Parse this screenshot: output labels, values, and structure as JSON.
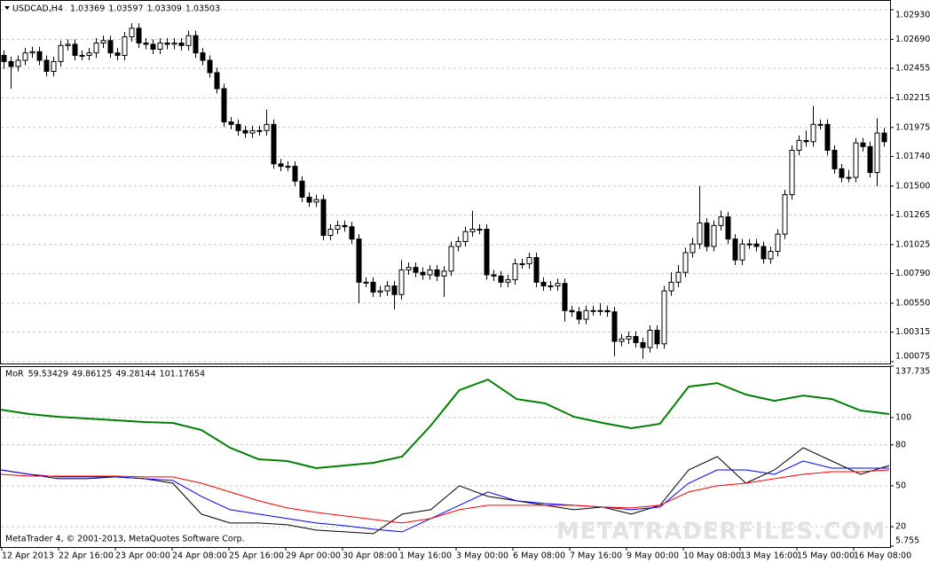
{
  "chart_data": [
    {
      "type": "candlestick",
      "title": "USDCAD,H4",
      "ohlc": [
        1.03369,
        1.03597,
        1.03309,
        1.03503
      ],
      "up_color": "#ffffff",
      "down_color": "#000000",
      "outline_color": "#000000",
      "ylim": [
        1.00075,
        1.0293
      ],
      "yticks": [
        {
          "value": 1.0293,
          "label": "1.02930"
        },
        {
          "value": 1.0269,
          "label": "1.02690"
        },
        1.02455,
        {
          "value": 1.02215,
          "label": "1.02215"
        },
        1.01975,
        {
          "value": 1.0174,
          "label": "1.01740"
        },
        {
          "value": 1.015,
          "label": "1.01500"
        },
        1.01265,
        1.01025,
        {
          "value": 1.0079,
          "label": "1.00790"
        },
        {
          "value": 1.0055,
          "label": "1.00550"
        },
        1.00315,
        1.00075
      ],
      "grid": true,
      "open": [
        1.0256,
        1.0251,
        1.0247,
        1.0252,
        1.0258,
        1.0259,
        1.0252,
        1.0243,
        1.0251,
        1.0264,
        1.0265,
        1.0256,
        1.0256,
        1.0258,
        1.0266,
        1.0268,
        1.0258,
        1.0256,
        1.0271,
        1.0278,
        1.0266,
        1.0265,
        1.0261,
        1.0266,
        1.0265,
        1.0266,
        1.0264,
        1.0272,
        1.0258,
        1.0252,
        1.0242,
        1.0229,
        1.0202,
        1.02,
        1.0195,
        1.0193,
        1.0195,
        1.0195,
        1.02,
        1.0168,
        1.0166,
        1.0166,
        1.0154,
        1.0141,
        1.0137,
        1.0139,
        1.011,
        1.0115,
        1.0118,
        1.0117,
        1.0107,
        1.0072,
        1.0072,
        1.0064,
        1.0065,
        1.0069,
        1.0062,
        1.0082,
        1.0084,
        1.008,
        1.0078,
        1.0082,
        1.0077,
        1.0081,
        1.0101,
        1.0105,
        1.0113,
        1.0115,
        1.0115,
        1.0078,
        1.0077,
        1.0072,
        1.0074,
        1.0087,
        1.0087,
        1.0092,
        1.0072,
        1.0069,
        1.0069,
        1.0071,
        1.0049,
        1.0048,
        1.0042,
        1.0049,
        1.0049,
        1.0049,
        1.0048,
        1.0024,
        1.0026,
        1.0028,
        1.0023,
        1.0019,
        1.0033,
        1.0022,
        1.0065,
        1.0072,
        1.008,
        1.0096,
        1.0103,
        1.012,
        1.0101,
        1.0118,
        1.0125,
        1.0107,
        1.009,
        1.0103,
        1.0103,
        1.0101,
        1.0091,
        1.0097,
        1.0111,
        1.0143,
        1.0179,
        1.0187,
        1.0186,
        1.02,
        1.02,
        1.0179,
        1.0164,
        1.0157,
        1.0157,
        1.0185,
        1.0182,
        1.0161,
        1.0193
      ],
      "high": [
        1.026,
        1.0255,
        1.0256,
        1.0262,
        1.0263,
        1.0263,
        1.0256,
        1.0255,
        1.0268,
        1.0269,
        1.0269,
        1.026,
        1.0262,
        1.027,
        1.0272,
        1.0272,
        1.0262,
        1.0275,
        1.0282,
        1.0282,
        1.027,
        1.0269,
        1.027,
        1.027,
        1.027,
        1.027,
        1.0276,
        1.0276,
        1.0262,
        1.0256,
        1.0246,
        1.0233,
        1.0206,
        1.0204,
        1.0199,
        1.0199,
        1.0199,
        1.0212,
        1.0204,
        1.0172,
        1.017,
        1.017,
        1.0158,
        1.0145,
        1.0143,
        1.0143,
        1.0119,
        1.0122,
        1.0122,
        1.0121,
        1.0111,
        1.0076,
        1.0076,
        1.0069,
        1.0073,
        1.0073,
        1.009,
        1.0088,
        1.0088,
        1.0084,
        1.0086,
        1.0086,
        1.0085,
        1.0105,
        1.0109,
        1.0117,
        1.013,
        1.0119,
        1.0119,
        1.0082,
        1.0081,
        1.0078,
        1.0091,
        1.0091,
        1.0096,
        1.0096,
        1.0076,
        1.0073,
        1.0075,
        1.0075,
        1.0053,
        1.0052,
        1.0053,
        1.0053,
        1.0055,
        1.0053,
        1.0052,
        1.003,
        1.0032,
        1.0032,
        1.0027,
        1.0037,
        1.0037,
        1.0069,
        1.008,
        1.0086,
        1.01,
        1.0108,
        1.015,
        1.0124,
        1.0122,
        1.013,
        1.0129,
        1.0111,
        1.0107,
        1.0107,
        1.0107,
        1.0105,
        1.0101,
        1.0115,
        1.0147,
        1.0183,
        1.0191,
        1.0195,
        1.0215,
        1.0204,
        1.0204,
        1.0183,
        1.0168,
        1.0163,
        1.0189,
        1.0189,
        1.0186,
        1.0205,
        1.0197
      ],
      "low": [
        1.0245,
        1.0229,
        1.0243,
        1.0248,
        1.0254,
        1.0248,
        1.0239,
        1.0239,
        1.0247,
        1.026,
        1.0252,
        1.0252,
        1.0252,
        1.0254,
        1.0262,
        1.0254,
        1.0252,
        1.0252,
        1.0267,
        1.0262,
        1.0261,
        1.0257,
        1.0257,
        1.0261,
        1.0261,
        1.026,
        1.026,
        1.0254,
        1.0248,
        1.0238,
        1.0225,
        1.0198,
        1.0196,
        1.0191,
        1.0189,
        1.0189,
        1.0191,
        1.0191,
        1.0164,
        1.0162,
        1.0162,
        1.015,
        1.0137,
        1.0133,
        1.0133,
        1.0106,
        1.0106,
        1.0111,
        1.0113,
        1.0103,
        1.0055,
        1.0068,
        1.006,
        1.006,
        1.0061,
        1.005,
        1.0058,
        1.0078,
        1.0076,
        1.0074,
        1.0074,
        1.0073,
        1.006,
        1.0077,
        1.0097,
        1.0101,
        1.0109,
        1.0111,
        1.0074,
        1.0073,
        1.0068,
        1.0068,
        1.007,
        1.0083,
        1.0083,
        1.0068,
        1.0065,
        1.0065,
        1.0065,
        1.004,
        1.0044,
        1.0038,
        1.0038,
        1.0045,
        1.0045,
        1.0044,
        1.0012,
        1.002,
        1.0022,
        1.0019,
        1.001,
        1.0015,
        1.0018,
        1.0018,
        1.0061,
        1.0068,
        1.0076,
        1.0092,
        1.0099,
        1.0097,
        1.0097,
        1.0114,
        1.0103,
        1.0086,
        1.0086,
        1.0099,
        1.0097,
        1.0087,
        1.0087,
        1.0093,
        1.0107,
        1.0139,
        1.0175,
        1.0182,
        1.0182,
        1.0196,
        1.0175,
        1.016,
        1.0153,
        1.0153,
        1.0153,
        1.0178,
        1.0157,
        1.015,
        1.0182
      ],
      "close": [
        1.0251,
        1.0247,
        1.0252,
        1.0258,
        1.0259,
        1.0252,
        1.0243,
        1.0251,
        1.0264,
        1.0265,
        1.0256,
        1.0256,
        1.0258,
        1.0266,
        1.0268,
        1.0258,
        1.0256,
        1.0271,
        1.0278,
        1.0266,
        1.0265,
        1.0261,
        1.0266,
        1.0265,
        1.0266,
        1.0264,
        1.0272,
        1.0258,
        1.0252,
        1.0242,
        1.0229,
        1.0202,
        1.02,
        1.0195,
        1.0193,
        1.0195,
        1.0195,
        1.02,
        1.0168,
        1.0166,
        1.0166,
        1.0154,
        1.0141,
        1.0137,
        1.0139,
        1.011,
        1.0115,
        1.0118,
        1.0117,
        1.0107,
        1.0072,
        1.0072,
        1.0064,
        1.0065,
        1.0069,
        1.0062,
        1.0082,
        1.0084,
        1.008,
        1.0078,
        1.0082,
        1.0077,
        1.0081,
        1.0101,
        1.0105,
        1.0113,
        1.0115,
        1.0115,
        1.0078,
        1.0077,
        1.0072,
        1.0074,
        1.0087,
        1.0087,
        1.0092,
        1.0072,
        1.0069,
        1.0069,
        1.0071,
        1.0049,
        1.0048,
        1.0042,
        1.0049,
        1.0049,
        1.0049,
        1.0048,
        1.0024,
        1.0026,
        1.0028,
        1.0023,
        1.0019,
        1.0033,
        1.0022,
        1.0065,
        1.0072,
        1.008,
        1.0096,
        1.0103,
        1.012,
        1.0101,
        1.0118,
        1.0125,
        1.0107,
        1.009,
        1.0103,
        1.0103,
        1.0101,
        1.0091,
        1.0097,
        1.0111,
        1.0143,
        1.0179,
        1.0187,
        1.0186,
        1.02,
        1.02,
        1.0179,
        1.0164,
        1.0157,
        1.0157,
        1.0185,
        1.0182,
        1.0161,
        1.0193,
        1.0186
      ]
    },
    {
      "type": "line",
      "title": "MoR",
      "legend_values": [
        59.53429,
        49.86125,
        49.28144,
        101.17654
      ],
      "ylim": [
        5.755,
        137.7359
      ],
      "yticks": [
        137.7359,
        100,
        80,
        50,
        20,
        5.755
      ],
      "grid": true,
      "xtick_labels": [
        "12 Apr 2013",
        "22 Apr 16:00",
        "23 Apr 00:00",
        "24 Apr 08:00",
        "25 Apr 16:00",
        "29 Apr 00:00",
        "30 Apr 08:00",
        "1 May 16:00",
        "3 May 00:00",
        "6 May 08:00",
        "7 May 16:00",
        "9 May 00:00",
        "10 May 08:00",
        "13 May 16:00",
        "15 May 00:00",
        "16 May 08:00"
      ],
      "series": [
        {
          "color": "#008000",
          "values": [
            105.8,
            102.6,
            100.6,
            99.4,
            98.1,
            96.8,
            96.1,
            90.9,
            77.9,
            69.5,
            68.2,
            63,
            64.9,
            66.9,
            71.4,
            94.2,
            120.1,
            127.9,
            113.6,
            110.4,
            100.6,
            96.1,
            92.2,
            95.5,
            122.7,
            125.3,
            116.9,
            112.3,
            116.2,
            113.6,
            105.2,
            102.6
          ]
        },
        {
          "color": "#000000",
          "values": [
            61.7,
            58.4,
            55.2,
            55.2,
            56.5,
            55.2,
            51.9,
            29.2,
            22.7,
            22.7,
            21.4,
            17.5,
            16.2,
            14.9,
            29.2,
            32.5,
            50,
            42.2,
            39,
            35.7,
            32.5,
            34.4,
            29.2,
            35.7,
            61.7,
            71.4,
            51.9,
            61.7,
            77.9,
            68.2,
            58.4,
            64.9
          ]
        },
        {
          "color": "#0000ff",
          "values": [
            61.7,
            58.4,
            56.5,
            56.5,
            56.5,
            55.2,
            53.9,
            42.2,
            32.5,
            29.2,
            26,
            22.7,
            20.8,
            18.2,
            16.2,
            26,
            35.7,
            45.5,
            39,
            37,
            35.7,
            34.4,
            32.5,
            34.4,
            51.9,
            61.7,
            61.7,
            58.4,
            68.2,
            63,
            63,
            63
          ]
        },
        {
          "color": "#ff0000",
          "values": [
            58.4,
            57.1,
            57.1,
            57.1,
            57.1,
            56.5,
            56.5,
            51.9,
            45.5,
            39,
            33.8,
            30.5,
            27.9,
            25.3,
            22.7,
            26,
            32.5,
            35.7,
            35.7,
            35.7,
            35.7,
            34.4,
            33.8,
            35.7,
            45.5,
            50,
            51.9,
            55.2,
            58.4,
            60.4,
            60.4,
            61.7
          ]
        }
      ]
    }
  ],
  "footer": "MetaTrader 4, © 2001-2013, MetaQuotes Software Corp.",
  "watermark": "METATRADERFILES.COM"
}
